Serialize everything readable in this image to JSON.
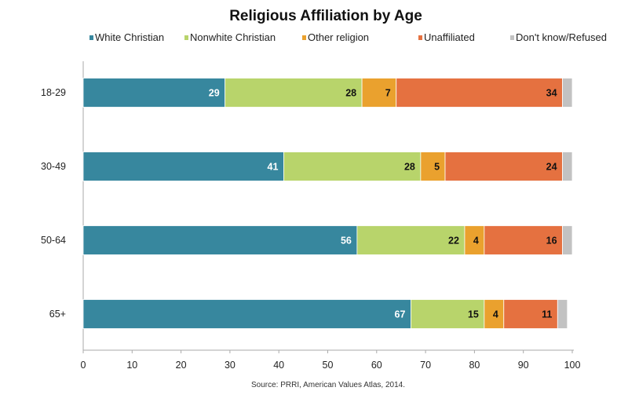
{
  "chart_data": {
    "type": "bar",
    "orientation": "horizontal",
    "stacked": true,
    "title": "Religious Affiliation by Age",
    "xlabel": "",
    "ylabel": "",
    "xlim": [
      0,
      100
    ],
    "xticks": [
      0,
      10,
      20,
      30,
      40,
      50,
      60,
      70,
      80,
      90,
      100
    ],
    "grid": false,
    "legend_position": "top",
    "categories": [
      "18-29",
      "30-49",
      "50-64",
      "65+"
    ],
    "series": [
      {
        "name": "White Christian",
        "color": "#37879e",
        "label_color": "#ffffff",
        "values": [
          29,
          41,
          56,
          67
        ],
        "labels": [
          "29",
          "41",
          "56",
          "67"
        ]
      },
      {
        "name": "Nonwhite Christian",
        "color": "#b8d46b",
        "label_color": "#111111",
        "values": [
          28,
          28,
          22,
          15
        ],
        "labels": [
          "28",
          "28",
          "22",
          "15"
        ]
      },
      {
        "name": "Other religion",
        "color": "#eaa12e",
        "label_color": "#111111",
        "values": [
          7,
          5,
          4,
          4
        ],
        "labels": [
          "7",
          "5",
          "4",
          "4"
        ]
      },
      {
        "name": "Unaffiliated",
        "color": "#e57140",
        "label_color": "#111111",
        "values": [
          34,
          24,
          16,
          11
        ],
        "labels": [
          "34",
          "24",
          "16",
          "11"
        ]
      },
      {
        "name": "Don't know/Refused",
        "color": "#c2c2c2",
        "label_color": "#111111",
        "values": [
          2,
          2,
          2,
          2
        ],
        "labels": [
          "",
          "",
          "",
          ""
        ]
      }
    ],
    "source": "Source: PRRI, American Values Atlas, 2014."
  }
}
